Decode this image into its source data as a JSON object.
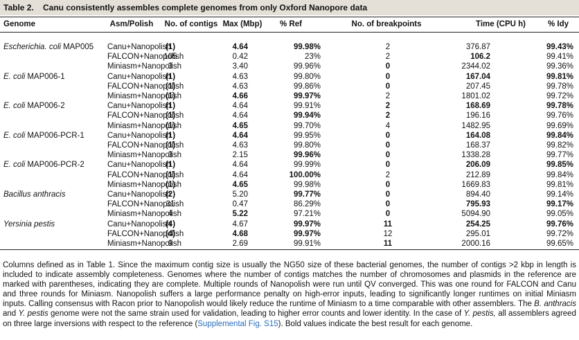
{
  "title": {
    "label": "Table 2.",
    "text": "Canu consistently assembles complete genomes from only Oxford Nanopore data"
  },
  "table": {
    "header": [
      "Genome",
      "Asm/Polish",
      "No. of contigs",
      "Max (Mbp)",
      "% Ref",
      "No. of breakpoints",
      "Time (CPU h)",
      "% Idy"
    ],
    "groups": [
      {
        "genome": [
          "Escherichia. coli",
          "MAP005"
        ],
        "rows": [
          {
            "asm": "Canu+Nanopolish",
            "cells": [
              "(1)",
              "4.64",
              "99.98%",
              "2",
              "376.87",
              "99.43%"
            ],
            "bold": [
              0,
              1,
              2,
              5
            ]
          },
          {
            "asm": "FALCON+Nanopolish",
            "cells": [
              "105",
              "0.42",
              "23%",
              "2",
              "106.2",
              "99.41%"
            ],
            "bold": [
              4
            ]
          },
          {
            "asm": "Miniasm+Nanopolish",
            "cells": [
              "3",
              "3.40",
              "99.96%",
              "0",
              "2344.02",
              "99.36%"
            ],
            "bold": [
              3
            ]
          }
        ]
      },
      {
        "genome": [
          "E. coli",
          "MAP006-1"
        ],
        "rows": [
          {
            "asm": "Canu+Nanopolish",
            "cells": [
              "(1)",
              "4.63",
              "99.80%",
              "0",
              "167.04",
              "99.81%"
            ],
            "bold": [
              0,
              3,
              4,
              5
            ]
          },
          {
            "asm": "FALCON+Nanopolish",
            "cells": [
              "(1)",
              "4.63",
              "99.86%",
              "0",
              "207.45",
              "99.78%"
            ],
            "bold": [
              0,
              3
            ]
          },
          {
            "asm": "Miniasm+Nanopolish",
            "cells": [
              "(1)",
              "4.66",
              "99.97%",
              "2",
              "1801.02",
              "99.72%"
            ],
            "bold": [
              0,
              1,
              2
            ]
          }
        ]
      },
      {
        "genome": [
          "E. coli",
          "MAP006-2"
        ],
        "rows": [
          {
            "asm": "Canu+Nanopolish",
            "cells": [
              "(1)",
              "4.64",
              "99.91%",
              "2",
              "168.69",
              "99.78%"
            ],
            "bold": [
              0,
              3,
              4,
              5
            ]
          },
          {
            "asm": "FALCON+Nanopolish",
            "cells": [
              "(1)",
              "4.64",
              "99.94%",
              "2",
              "196.16",
              "99.76%"
            ],
            "bold": [
              0,
              2,
              3
            ]
          },
          {
            "asm": "Miniasm+Nanopolish",
            "cells": [
              "(1)",
              "4.65",
              "99.70%",
              "4",
              "1482.95",
              "99.69%"
            ],
            "bold": [
              0,
              1
            ]
          }
        ]
      },
      {
        "genome": [
          "E. coli",
          "MAP006-PCR-1"
        ],
        "rows": [
          {
            "asm": "Canu+Nanopolish",
            "cells": [
              "(1)",
              "4.64",
              "99.95%",
              "0",
              "164.08",
              "99.84%"
            ],
            "bold": [
              0,
              1,
              3,
              4,
              5
            ]
          },
          {
            "asm": "FALCON+Nanopolish",
            "cells": [
              "(1)",
              "4.63",
              "99.80%",
              "0",
              "168.37",
              "99.82%"
            ],
            "bold": [
              0,
              3
            ]
          },
          {
            "asm": "Miniasm+Nanopolish",
            "cells": [
              "3",
              "2.15",
              "99.96%",
              "0",
              "1338.28",
              "99.77%"
            ],
            "bold": [
              2,
              3
            ]
          }
        ]
      },
      {
        "genome": [
          "E. coli",
          "MAP006-PCR-2"
        ],
        "rows": [
          {
            "asm": "Canu+Nanopolish",
            "cells": [
              "(1)",
              "4.64",
              "99.99%",
              "0",
              "206.09",
              "99.85%"
            ],
            "bold": [
              0,
              3,
              4,
              5
            ]
          },
          {
            "asm": "FALCON+Nanopolish",
            "cells": [
              "(1)",
              "4.64",
              "100.00%",
              "2",
              "212.89",
              "99.84%"
            ],
            "bold": [
              0,
              2
            ]
          },
          {
            "asm": "Miniasm+Nanopolish",
            "cells": [
              "(1)",
              "4.65",
              "99.98%",
              "0",
              "1669.83",
              "99.81%"
            ],
            "bold": [
              0,
              1,
              3
            ]
          }
        ]
      },
      {
        "genome": [
          "Bacillus anthracis"
        ],
        "rows": [
          {
            "asm": "Canu+Nanopolish",
            "cells": [
              "(2)",
              "5.20",
              "99.77%",
              "0",
              "894.40",
              "99.14%"
            ],
            "bold": [
              0,
              2,
              3
            ]
          },
          {
            "asm": "FALCON+Nanopolish",
            "cells": [
              "31",
              "0.47",
              "86.29%",
              "0",
              "795.93",
              "99.17%"
            ],
            "bold": [
              3,
              4,
              5
            ]
          },
          {
            "asm": "Miniasm+Nanopolish",
            "cells": [
              "4",
              "5.22",
              "97.21%",
              "0",
              "5094.90",
              "99.05%"
            ],
            "bold": [
              1,
              3
            ]
          }
        ]
      },
      {
        "genome": [
          "Yersinia pestis"
        ],
        "rows": [
          {
            "asm": "Canu+Nanopolish",
            "cells": [
              "(4)",
              "4.67",
              "99.97%",
              "11",
              "254.25",
              "99.76%"
            ],
            "bold": [
              0,
              2,
              3,
              4,
              5
            ]
          },
          {
            "asm": "FALCON+Nanopolish",
            "cells": [
              "(4)",
              "4.68",
              "99.97%",
              "12",
              "295.01",
              "99.72%"
            ],
            "bold": [
              0,
              1,
              2
            ]
          },
          {
            "asm": "Miniasm+Nanopolish",
            "cells": [
              "9",
              "2.69",
              "99.91%",
              "11",
              "2000.16",
              "99.65%"
            ],
            "bold": [
              3
            ]
          }
        ]
      }
    ]
  },
  "caption": [
    {
      "text": "Columns defined as in Table 1. Since the maximum contig size is usually the NG50 size of these bacterial genomes, the number of contigs >2 kbp in length is included to indicate assembly completeness. Genomes where the number of contigs matches the number of chromosomes and plasmids in the reference are marked with parentheses, indicating they are complete. Multiple rounds of Nanopolish were run until QV converged. This was one round for FALCON and Canu and three rounds for Miniasm. Nanopolish suffers a large performance penalty on high-error inputs, leading to significantly longer runtimes on initial Miniasm inputs. Calling consensus with Racon prior to Nanopolish would likely reduce the runtime of Miniasm to a time comparable with other assemblers. The",
      "style": "plain"
    },
    {
      "text": "B. anthracis",
      "style": "italic"
    },
    {
      "text": "and",
      "style": "plain"
    },
    {
      "text": "Y. pestis",
      "style": "italic"
    },
    {
      "text": "genome were not the same strain used for validation, leading to higher error counts and lower identity. In the case of",
      "style": "plain"
    },
    {
      "text": "Y. pestis,",
      "style": "italic"
    },
    {
      "text": "all assemblers agreed on three large inversions with respect to the reference (",
      "style": "plain"
    },
    {
      "text": "Supplemental Fig. S15",
      "style": "link"
    },
    {
      "text": "). Bold values indicate the best result for each genome.",
      "style": "plain"
    }
  ]
}
